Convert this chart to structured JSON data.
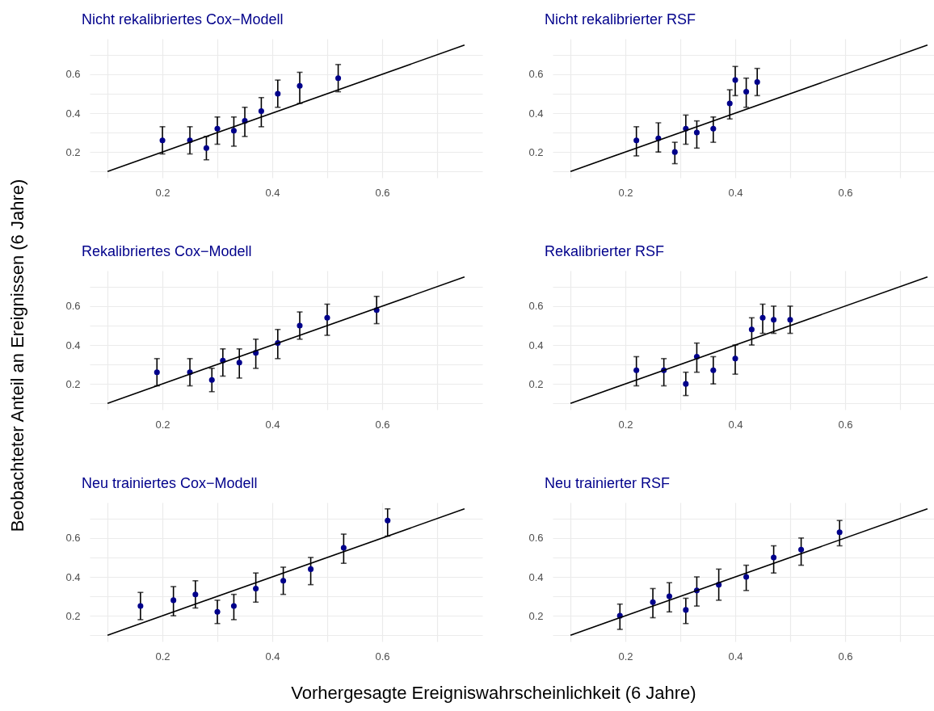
{
  "chart_data": [
    {
      "type": "scatter",
      "title": "Nicht rekalibriertes Cox−Modell",
      "xlabel": "Vorhergesagte Ereigniswahrscheinlichkeit  (6 Jahre)",
      "ylabel": "Beobachteter Anteil an Ereignissen  (6 Jahre)",
      "xlim": [
        0.0675,
        0.7825
      ],
      "ylim": [
        0.0675,
        0.7825
      ],
      "xticks": [
        {
          "value": 0.1,
          "label": null
        },
        0.2,
        {
          "value": 0.3,
          "label": null
        },
        0.4,
        {
          "value": 0.5,
          "label": null
        },
        0.6,
        {
          "value": 0.7,
          "label": null
        }
      ],
      "yticks": [
        {
          "value": 0.1,
          "label": null
        },
        0.2,
        {
          "value": 0.3,
          "label": null
        },
        0.4,
        {
          "value": 0.5,
          "label": null
        },
        0.6,
        {
          "value": 0.7,
          "label": null
        }
      ],
      "grid": true,
      "series": [
        {
          "type": "scatter",
          "marker": "circle",
          "color": "#00008b",
          "x": [
            0.2,
            0.25,
            0.28,
            0.3,
            0.33,
            0.35,
            0.38,
            0.41,
            0.45,
            0.52
          ],
          "values": [
            0.26,
            0.26,
            0.22,
            0.32,
            0.31,
            0.36,
            0.41,
            0.5,
            0.54,
            0.58
          ],
          "errors": [
            [
              0.19,
              0.33
            ],
            [
              0.19,
              0.33
            ],
            [
              0.16,
              0.28
            ],
            [
              0.24,
              0.38
            ],
            [
              0.23,
              0.38
            ],
            [
              0.28,
              0.43
            ],
            [
              0.33,
              0.48
            ],
            [
              0.43,
              0.57
            ],
            [
              0.45,
              0.61
            ],
            [
              0.51,
              0.65
            ]
          ]
        },
        {
          "type": "line",
          "color": "#000000",
          "line_style": "solid",
          "x": [
            0.1,
            0.75
          ],
          "values": [
            0.1,
            0.75
          ]
        }
      ]
    },
    {
      "type": "scatter",
      "title": "Nicht rekalibrierter RSF",
      "xlim": [
        0.0675,
        0.7825
      ],
      "ylim": [
        0.0675,
        0.7825
      ],
      "xticks": [
        {
          "value": 0.1,
          "label": null
        },
        0.2,
        {
          "value": 0.3,
          "label": null
        },
        0.4,
        {
          "value": 0.5,
          "label": null
        },
        0.6,
        {
          "value": 0.7,
          "label": null
        }
      ],
      "yticks": [
        {
          "value": 0.1,
          "label": null
        },
        0.2,
        {
          "value": 0.3,
          "label": null
        },
        0.4,
        {
          "value": 0.5,
          "label": null
        },
        0.6,
        {
          "value": 0.7,
          "label": null
        }
      ],
      "grid": true,
      "series": [
        {
          "type": "scatter",
          "marker": "circle",
          "color": "#00008b",
          "x": [
            0.22,
            0.26,
            0.29,
            0.31,
            0.33,
            0.36,
            0.39,
            0.4,
            0.42,
            0.44
          ],
          "values": [
            0.26,
            0.27,
            0.2,
            0.32,
            0.3,
            0.32,
            0.45,
            0.57,
            0.51,
            0.56
          ],
          "errors": [
            [
              0.18,
              0.33
            ],
            [
              0.2,
              0.35
            ],
            [
              0.14,
              0.25
            ],
            [
              0.24,
              0.39
            ],
            [
              0.22,
              0.36
            ],
            [
              0.25,
              0.38
            ],
            [
              0.37,
              0.52
            ],
            [
              0.49,
              0.64
            ],
            [
              0.43,
              0.58
            ],
            [
              0.49,
              0.63
            ]
          ]
        },
        {
          "type": "line",
          "color": "#000000",
          "line_style": "solid",
          "x": [
            0.1,
            0.75
          ],
          "values": [
            0.1,
            0.75
          ]
        }
      ]
    },
    {
      "type": "scatter",
      "title": "Rekalibriertes Cox−Modell",
      "xlim": [
        0.0675,
        0.7825
      ],
      "ylim": [
        0.0675,
        0.7825
      ],
      "xticks": [
        {
          "value": 0.1,
          "label": null
        },
        0.2,
        {
          "value": 0.3,
          "label": null
        },
        0.4,
        {
          "value": 0.5,
          "label": null
        },
        0.6,
        {
          "value": 0.7,
          "label": null
        }
      ],
      "yticks": [
        {
          "value": 0.1,
          "label": null
        },
        0.2,
        {
          "value": 0.3,
          "label": null
        },
        0.4,
        {
          "value": 0.5,
          "label": null
        },
        0.6,
        {
          "value": 0.7,
          "label": null
        }
      ],
      "grid": true,
      "series": [
        {
          "type": "scatter",
          "marker": "circle",
          "color": "#00008b",
          "x": [
            0.19,
            0.25,
            0.29,
            0.31,
            0.34,
            0.37,
            0.41,
            0.45,
            0.5,
            0.59
          ],
          "values": [
            0.26,
            0.26,
            0.22,
            0.32,
            0.31,
            0.36,
            0.41,
            0.5,
            0.54,
            0.58
          ],
          "errors": [
            [
              0.19,
              0.33
            ],
            [
              0.19,
              0.33
            ],
            [
              0.16,
              0.28
            ],
            [
              0.24,
              0.38
            ],
            [
              0.23,
              0.38
            ],
            [
              0.28,
              0.43
            ],
            [
              0.33,
              0.48
            ],
            [
              0.43,
              0.57
            ],
            [
              0.45,
              0.61
            ],
            [
              0.51,
              0.65
            ]
          ]
        },
        {
          "type": "line",
          "color": "#000000",
          "line_style": "solid",
          "x": [
            0.1,
            0.75
          ],
          "values": [
            0.1,
            0.75
          ]
        }
      ]
    },
    {
      "type": "scatter",
      "title": "Rekalibrierter RSF",
      "xlim": [
        0.0675,
        0.7825
      ],
      "ylim": [
        0.0675,
        0.7825
      ],
      "xticks": [
        {
          "value": 0.1,
          "label": null
        },
        0.2,
        {
          "value": 0.3,
          "label": null
        },
        0.4,
        {
          "value": 0.5,
          "label": null
        },
        0.6,
        {
          "value": 0.7,
          "label": null
        }
      ],
      "yticks": [
        {
          "value": 0.1,
          "label": null
        },
        0.2,
        {
          "value": 0.3,
          "label": null
        },
        0.4,
        {
          "value": 0.5,
          "label": null
        },
        0.6,
        {
          "value": 0.7,
          "label": null
        }
      ],
      "grid": true,
      "series": [
        {
          "type": "scatter",
          "marker": "circle",
          "color": "#00008b",
          "x": [
            0.22,
            0.27,
            0.31,
            0.33,
            0.36,
            0.4,
            0.43,
            0.45,
            0.47,
            0.5
          ],
          "values": [
            0.27,
            0.27,
            0.2,
            0.34,
            0.27,
            0.33,
            0.48,
            0.54,
            0.53,
            0.53
          ],
          "errors": [
            [
              0.19,
              0.34
            ],
            [
              0.19,
              0.33
            ],
            [
              0.14,
              0.26
            ],
            [
              0.26,
              0.41
            ],
            [
              0.2,
              0.34
            ],
            [
              0.25,
              0.4
            ],
            [
              0.4,
              0.54
            ],
            [
              0.46,
              0.61
            ],
            [
              0.46,
              0.6
            ],
            [
              0.46,
              0.6
            ]
          ]
        },
        {
          "type": "line",
          "color": "#000000",
          "line_style": "solid",
          "x": [
            0.1,
            0.75
          ],
          "values": [
            0.1,
            0.75
          ]
        }
      ]
    },
    {
      "type": "scatter",
      "title": "Neu trainiertes Cox−Modell",
      "xlim": [
        0.0675,
        0.7825
      ],
      "ylim": [
        0.0675,
        0.7825
      ],
      "xticks": [
        {
          "value": 0.1,
          "label": null
        },
        0.2,
        {
          "value": 0.3,
          "label": null
        },
        0.4,
        {
          "value": 0.5,
          "label": null
        },
        0.6,
        {
          "value": 0.7,
          "label": null
        }
      ],
      "yticks": [
        {
          "value": 0.1,
          "label": null
        },
        0.2,
        {
          "value": 0.3,
          "label": null
        },
        0.4,
        {
          "value": 0.5,
          "label": null
        },
        0.6,
        {
          "value": 0.7,
          "label": null
        }
      ],
      "grid": true,
      "series": [
        {
          "type": "scatter",
          "marker": "circle",
          "color": "#00008b",
          "x": [
            0.16,
            0.22,
            0.26,
            0.3,
            0.33,
            0.37,
            0.42,
            0.47,
            0.53,
            0.61
          ],
          "values": [
            0.25,
            0.28,
            0.31,
            0.22,
            0.25,
            0.34,
            0.38,
            0.44,
            0.55,
            0.69
          ],
          "errors": [
            [
              0.18,
              0.32
            ],
            [
              0.2,
              0.35
            ],
            [
              0.24,
              0.38
            ],
            [
              0.16,
              0.28
            ],
            [
              0.18,
              0.31
            ],
            [
              0.27,
              0.42
            ],
            [
              0.31,
              0.45
            ],
            [
              0.36,
              0.5
            ],
            [
              0.47,
              0.62
            ],
            [
              0.61,
              0.75
            ]
          ]
        },
        {
          "type": "line",
          "color": "#000000",
          "line_style": "solid",
          "x": [
            0.1,
            0.75
          ],
          "values": [
            0.1,
            0.75
          ]
        }
      ]
    },
    {
      "type": "scatter",
      "title": "Neu trainierter RSF",
      "xlim": [
        0.0675,
        0.7825
      ],
      "ylim": [
        0.0675,
        0.7825
      ],
      "xticks": [
        {
          "value": 0.1,
          "label": null
        },
        0.2,
        {
          "value": 0.3,
          "label": null
        },
        0.4,
        {
          "value": 0.5,
          "label": null
        },
        0.6,
        {
          "value": 0.7,
          "label": null
        }
      ],
      "yticks": [
        {
          "value": 0.1,
          "label": null
        },
        0.2,
        {
          "value": 0.3,
          "label": null
        },
        0.4,
        {
          "value": 0.5,
          "label": null
        },
        0.6,
        {
          "value": 0.7,
          "label": null
        }
      ],
      "grid": true,
      "series": [
        {
          "type": "scatter",
          "marker": "circle",
          "color": "#00008b",
          "x": [
            0.19,
            0.25,
            0.28,
            0.31,
            0.33,
            0.37,
            0.42,
            0.47,
            0.52,
            0.59
          ],
          "values": [
            0.2,
            0.27,
            0.3,
            0.23,
            0.33,
            0.36,
            0.4,
            0.5,
            0.54,
            0.63
          ],
          "errors": [
            [
              0.13,
              0.26
            ],
            [
              0.19,
              0.34
            ],
            [
              0.22,
              0.37
            ],
            [
              0.16,
              0.29
            ],
            [
              0.25,
              0.4
            ],
            [
              0.28,
              0.44
            ],
            [
              0.33,
              0.46
            ],
            [
              0.42,
              0.56
            ],
            [
              0.46,
              0.6
            ],
            [
              0.56,
              0.69
            ]
          ]
        },
        {
          "type": "line",
          "color": "#000000",
          "line_style": "solid",
          "x": [
            0.1,
            0.75
          ],
          "values": [
            0.1,
            0.75
          ]
        }
      ]
    }
  ]
}
